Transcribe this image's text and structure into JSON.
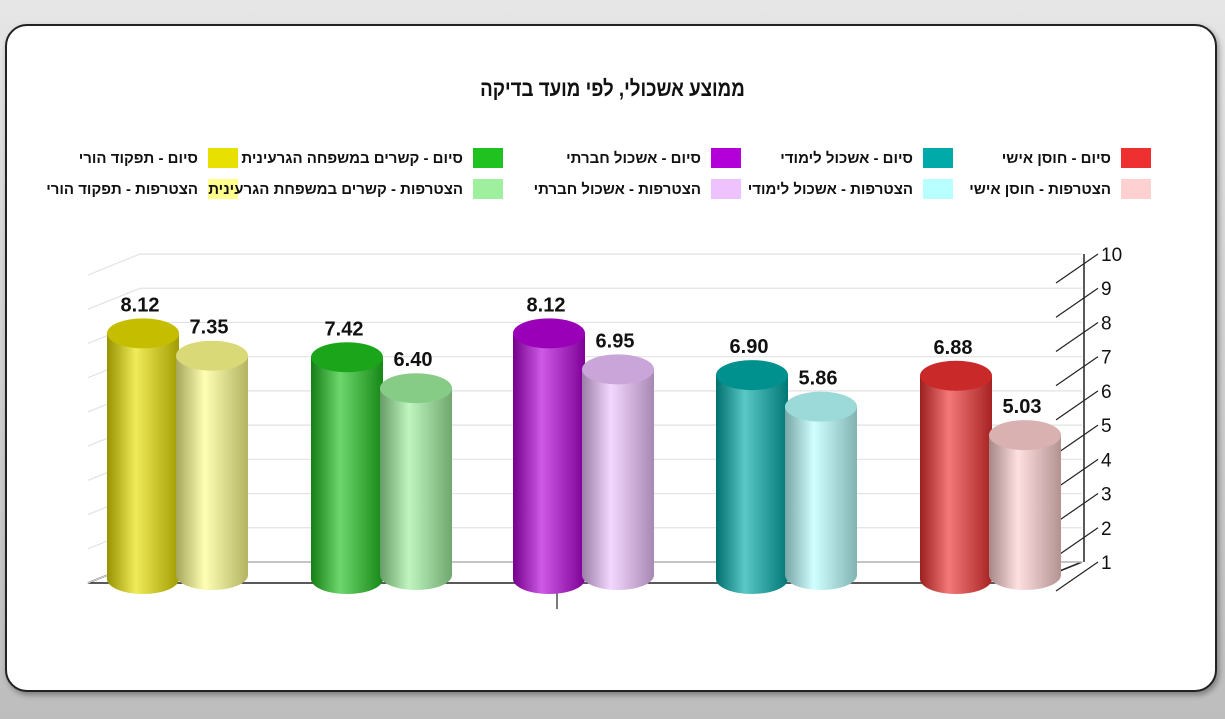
{
  "colors": {
    "yellow": "#e8e000",
    "yellow_light": "#ffff8c",
    "green": "#1fc21f",
    "green_light": "#9ef09e",
    "purple": "#b400d8",
    "purple_light": "#eec2ff",
    "teal": "#00aaa8",
    "teal_light": "#b8ffff",
    "red": "#ee3030",
    "red_light": "#ffd0d0"
  },
  "chart_data": {
    "type": "bar",
    "title": "ממוצע אשכולי, לפי מועד בדיקה",
    "xlabel": "",
    "ylabel": "",
    "ylim": [
      1,
      10
    ],
    "yticks": [
      "1",
      "2",
      "3",
      "4",
      "5",
      "6",
      "7",
      "8",
      "9",
      "10"
    ],
    "grid": true,
    "legend_position": "top",
    "series": [
      {
        "name": "סיום - תפקוד הורי",
        "values": [
          8.12
        ],
        "label": "8.12",
        "color": "#e8e000"
      },
      {
        "name": "הצטרפות - תפקוד הורי",
        "values": [
          7.35
        ],
        "label": "7.35",
        "color": "#ffff8c"
      },
      {
        "name": "סיום - קשרים במשפחה הגרעינית",
        "values": [
          7.42
        ],
        "label": "7.42",
        "color": "#1fc21f"
      },
      {
        "name": "הצטרפות - קשרים במשפחת הגרעינית",
        "values": [
          6.4
        ],
        "label": "6.40",
        "color": "#9ef09e"
      },
      {
        "name": "סיום - אשכול חברתי",
        "values": [
          8.12
        ],
        "label": "8.12",
        "color": "#b400d8"
      },
      {
        "name": "הצטרפות - אשכול חברתי",
        "values": [
          6.95
        ],
        "label": "6.95",
        "color": "#eec2ff"
      },
      {
        "name": "סיום - אשכול לימודי",
        "values": [
          6.9
        ],
        "label": "6.90",
        "color": "#00aaa8"
      },
      {
        "name": "הצטרפות - אשכול לימודי",
        "values": [
          5.86
        ],
        "label": "5.86",
        "color": "#b8ffff"
      },
      {
        "name": "סיום - חוסן אישי",
        "values": [
          6.88
        ],
        "label": "6.88",
        "color": "#ee3030"
      },
      {
        "name": "הצטרפות - חוסן אישי",
        "values": [
          5.03
        ],
        "label": "5.03",
        "color": "#ffd0d0"
      }
    ]
  }
}
